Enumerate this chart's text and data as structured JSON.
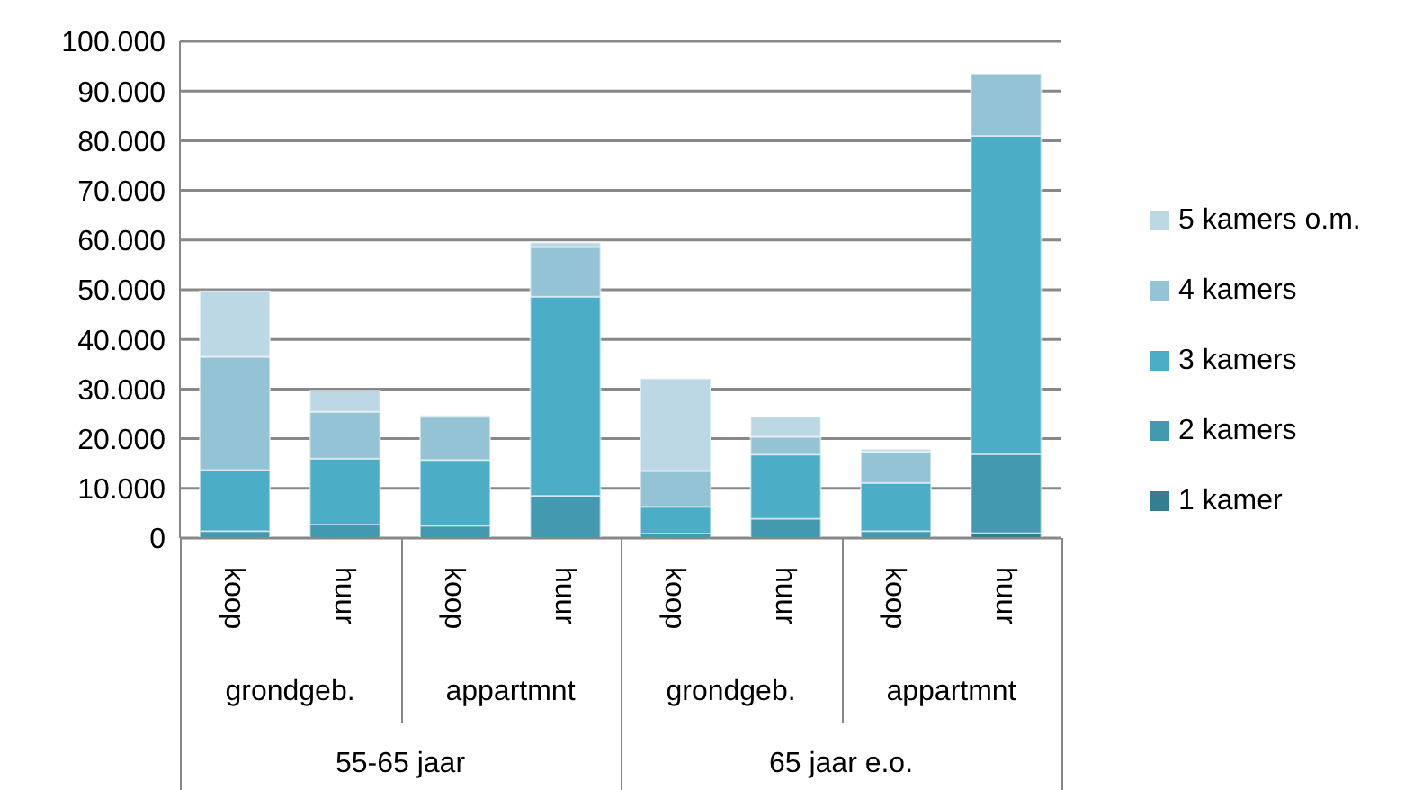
{
  "chart_data": {
    "type": "bar",
    "stacked": true,
    "categories": [
      "koop",
      "huur",
      "koop",
      "huur",
      "koop",
      "huur",
      "koop",
      "huur"
    ],
    "series": [
      {
        "name": "1 kamer",
        "color": "#357e92",
        "values": [
          null,
          null,
          null,
          null,
          null,
          null,
          null,
          1000
        ]
      },
      {
        "name": "2 kamers",
        "color": "#4299b0",
        "values": [
          1400,
          2700,
          2500,
          8500,
          900,
          3900,
          1400,
          15900
        ]
      },
      {
        "name": "3 kamers",
        "color": "#4badc6",
        "values": [
          12300,
          13300,
          13200,
          40100,
          5400,
          12900,
          9700,
          64100
        ]
      },
      {
        "name": "4 kamers",
        "color": "#93c3d5",
        "values": [
          22800,
          9400,
          8700,
          10000,
          7200,
          3600,
          6300,
          12500
        ]
      },
      {
        "name": "5 kamers o.m.",
        "color": "#bcd8e4",
        "values": [
          13200,
          4300,
          300,
          900,
          18600,
          4000,
          500,
          0
        ]
      }
    ],
    "ylim": [
      0,
      100000
    ],
    "yticks": [
      {
        "value": 0,
        "label": "0"
      },
      {
        "value": 10000,
        "label": "10.000"
      },
      {
        "value": 20000,
        "label": "20.000"
      },
      {
        "value": 30000,
        "label": "30.000"
      },
      {
        "value": 40000,
        "label": "40.000"
      },
      {
        "value": 50000,
        "label": "50.000"
      },
      {
        "value": 60000,
        "label": "60.000"
      },
      {
        "value": 70000,
        "label": "70.000"
      },
      {
        "value": 80000,
        "label": "80.000"
      },
      {
        "value": 90000,
        "label": "90.000"
      },
      {
        "value": 100000,
        "label": "100.000"
      }
    ],
    "grid": "y",
    "legend": "right",
    "annotations": [
      "grondgeb.",
      "appartmnt",
      "grondgeb.",
      "appartmnt",
      "55-65 jaar",
      "65 jaar e.o."
    ]
  }
}
